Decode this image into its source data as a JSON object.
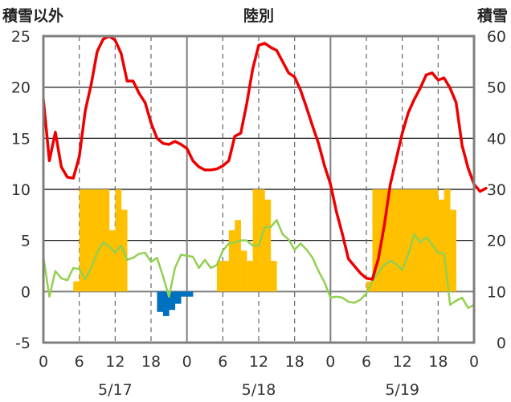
{
  "chart_data": {
    "type": "bar+line",
    "title": "陸別",
    "left_axis_label": "積雪以外",
    "right_axis_label": "積雪",
    "left_ylim": [
      -5,
      25
    ],
    "left_ticks": [
      -5,
      0,
      5,
      10,
      15,
      20,
      25
    ],
    "right_ylim": [
      0,
      60
    ],
    "right_ticks": [
      0,
      10,
      20,
      30,
      40,
      50,
      60
    ],
    "x_tick_labels": [
      "0",
      "6",
      "12",
      "18",
      "0",
      "6",
      "12",
      "18",
      "0",
      "6",
      "12",
      "18",
      "0"
    ],
    "date_labels": [
      "5/17",
      "5/18",
      "5/19"
    ],
    "colors": {
      "temperature": "#ee0000",
      "green_line": "#92d050",
      "yellow_bars": "#ffc000",
      "blue_bars": "#0070c0",
      "frame": "#7f7f7f"
    },
    "yellow_bars": [
      {
        "h": 5,
        "v": 1
      },
      {
        "h": 6,
        "v": 10
      },
      {
        "h": 7,
        "v": 10
      },
      {
        "h": 8,
        "v": 10
      },
      {
        "h": 9,
        "v": 10
      },
      {
        "h": 10,
        "v": 10
      },
      {
        "h": 11,
        "v": 6
      },
      {
        "h": 12,
        "v": 10
      },
      {
        "h": 13,
        "v": 8
      },
      {
        "h": 29,
        "v": 3
      },
      {
        "h": 30,
        "v": 3
      },
      {
        "h": 31,
        "v": 6
      },
      {
        "h": 32,
        "v": 7
      },
      {
        "h": 33,
        "v": 4
      },
      {
        "h": 34,
        "v": 3
      },
      {
        "h": 35,
        "v": 10
      },
      {
        "h": 36,
        "v": 10
      },
      {
        "h": 37,
        "v": 9
      },
      {
        "h": 38,
        "v": 3
      },
      {
        "h": 54,
        "v": 1
      },
      {
        "h": 55,
        "v": 10
      },
      {
        "h": 56,
        "v": 10
      },
      {
        "h": 57,
        "v": 10
      },
      {
        "h": 58,
        "v": 10
      },
      {
        "h": 59,
        "v": 10
      },
      {
        "h": 60,
        "v": 10
      },
      {
        "h": 61,
        "v": 10
      },
      {
        "h": 62,
        "v": 10
      },
      {
        "h": 63,
        "v": 10
      },
      {
        "h": 64,
        "v": 10
      },
      {
        "h": 65,
        "v": 10
      },
      {
        "h": 66,
        "v": 9
      },
      {
        "h": 67,
        "v": 10
      },
      {
        "h": 68,
        "v": 8
      }
    ],
    "blue_bars": [
      {
        "h": 19,
        "v": -2
      },
      {
        "h": 20,
        "v": -2.4
      },
      {
        "h": 21,
        "v": -1.8
      },
      {
        "h": 22,
        "v": -1.2
      },
      {
        "h": 23,
        "v": -0.5
      },
      {
        "h": 24,
        "v": -0.5
      }
    ],
    "temperature": [
      18.8,
      12.8,
      15.6,
      12.2,
      11.2,
      11.1,
      13.2,
      17.7,
      20.3,
      23.5,
      24.7,
      25.0,
      24.6,
      23.3,
      20.6,
      20.6,
      19.4,
      18.5,
      16.5,
      15.0,
      14.5,
      14.4,
      14.7,
      14.4,
      14.0,
      12.8,
      12.2,
      11.9,
      11.9,
      12.0,
      12.3,
      12.8,
      15.2,
      15.5,
      18.4,
      21.8,
      24.1,
      24.3,
      23.9,
      23.6,
      22.5,
      21.4,
      21.0,
      19.7,
      18.0,
      16.2,
      14.5,
      12.3,
      10.5,
      7.8,
      5.6,
      3.2,
      2.5,
      1.8,
      1.3,
      1.2,
      3.2,
      6.5,
      10.5,
      13.0,
      15.5,
      17.5,
      18.8,
      19.9,
      21.2,
      21.4,
      20.7,
      20.9,
      19.9,
      18.5,
      14.3,
      12.1,
      10.5,
      9.8,
      10.1
    ],
    "green_line": [
      3.4,
      -0.5,
      2.0,
      1.3,
      1.1,
      2.3,
      2.2,
      1.2,
      2.3,
      3.8,
      4.8,
      4.4,
      3.8,
      4.5,
      3.1,
      3.3,
      3.7,
      3.8,
      2.9,
      3.3,
      1.5,
      -0.5,
      2.3,
      3.6,
      3.5,
      3.4,
      2.3,
      3.1,
      2.3,
      2.6,
      4.0,
      4.7,
      4.8,
      5.0,
      5.0,
      4.5,
      4.5,
      6.3,
      6.3,
      7.0,
      5.6,
      5.1,
      4.1,
      4.7,
      4.1,
      3.3,
      2.0,
      0.9,
      -0.6,
      -0.5,
      -0.6,
      -1.0,
      -1.1,
      -0.8,
      -0.2,
      1.0,
      1.9,
      2.6,
      3.0,
      2.7,
      2.1,
      3.6,
      5.6,
      4.8,
      5.3,
      4.6,
      3.8,
      3.7,
      -1.3,
      -0.9,
      -0.6,
      -1.6,
      -1.3
    ]
  }
}
